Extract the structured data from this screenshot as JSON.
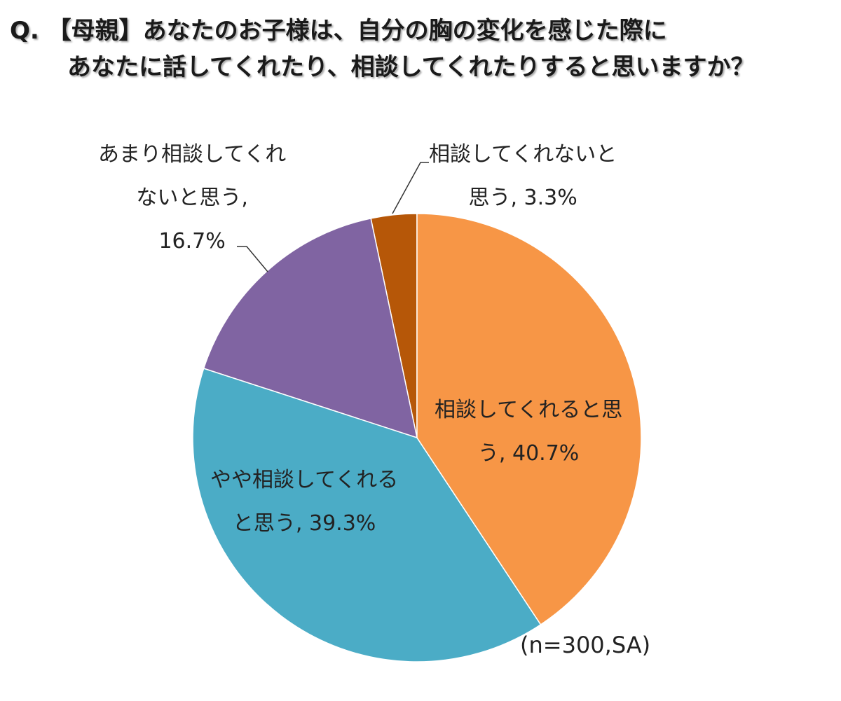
{
  "title": {
    "line1": "Q. 【母親】あなたのお子様は、自分の胸の変化を感じた際に",
    "line2": "あなたに話してくれたり、相談してくれたりすると思いますか？"
  },
  "chart_data": {
    "type": "pie",
    "title": "【母親】あなたのお子様は、自分の胸の変化を感じた際にあなたに話してくれたり、相談してくれたりすると思いますか？",
    "start": "top",
    "direction": "clockwise",
    "slices": [
      {
        "name": "相談してくれると思う",
        "value": 40.7,
        "color": "#F79646",
        "lines": [
          "相談してくれると思",
          "う, 40.7%"
        ]
      },
      {
        "name": "やや相談してくれると思う",
        "value": 39.3,
        "color": "#4BACC6",
        "lines": [
          "やや相談してくれる",
          "と思う, 39.3%"
        ]
      },
      {
        "name": "あまり相談してくれないと思う",
        "value": 16.7,
        "color": "#8064A2",
        "lines": [
          "あまり相談してくれ",
          "ないと思う,",
          "16.7%"
        ]
      },
      {
        "name": "相談してくれないと思う",
        "value": 3.3,
        "color": "#B65708",
        "lines": [
          "相談してくれないと",
          "思う, 3.3%"
        ]
      }
    ],
    "note": "(n=300,SA)"
  }
}
